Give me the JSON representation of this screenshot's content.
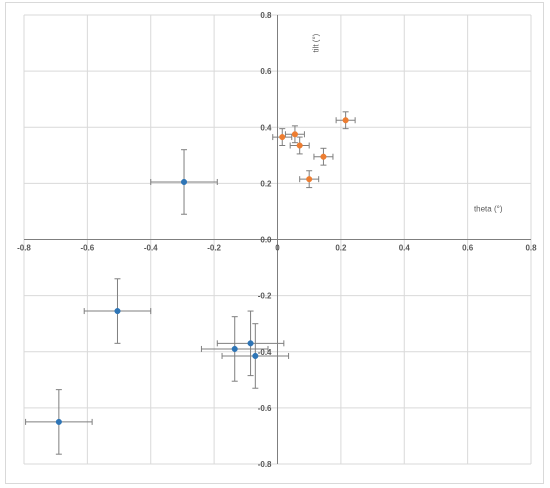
{
  "chart_data": {
    "type": "scatter",
    "xlabel": "theta (°)",
    "ylabel": "tilt (°)",
    "xlim": [
      -0.8,
      0.8
    ],
    "ylim": [
      -0.8,
      0.8
    ],
    "x_ticks": [
      "-0.8",
      "-0.6",
      "-0.4",
      "-0.2",
      "0",
      "0.2",
      "0.4",
      "0.6",
      "0.8"
    ],
    "y_ticks": [
      "0.8",
      "0.6",
      "0.4",
      "0.2",
      "0.0",
      "-0.2",
      "-0.4",
      "-0.6",
      "-0.8"
    ],
    "grid": true,
    "series": [
      {
        "color": "#2e75b6",
        "points": [
          {
            "x": -0.295,
            "y": 0.205,
            "xerr": 0.105,
            "yerr": 0.115
          },
          {
            "x": -0.505,
            "y": -0.255,
            "xerr": 0.105,
            "yerr": 0.115
          },
          {
            "x": -0.69,
            "y": -0.65,
            "xerr": 0.105,
            "yerr": 0.115
          },
          {
            "x": -0.135,
            "y": -0.39,
            "xerr": 0.105,
            "yerr": 0.115
          },
          {
            "x": -0.085,
            "y": -0.37,
            "xerr": 0.105,
            "yerr": 0.115
          },
          {
            "x": -0.07,
            "y": -0.415,
            "xerr": 0.105,
            "yerr": 0.115
          }
        ]
      },
      {
        "color": "#ed7d31",
        "points": [
          {
            "x": 0.015,
            "y": 0.365,
            "xerr": 0.03,
            "yerr": 0.03
          },
          {
            "x": 0.055,
            "y": 0.375,
            "xerr": 0.03,
            "yerr": 0.03
          },
          {
            "x": 0.07,
            "y": 0.335,
            "xerr": 0.03,
            "yerr": 0.03
          },
          {
            "x": 0.215,
            "y": 0.425,
            "xerr": 0.03,
            "yerr": 0.03
          },
          {
            "x": 0.145,
            "y": 0.295,
            "xerr": 0.03,
            "yerr": 0.03
          },
          {
            "x": 0.1,
            "y": 0.215,
            "xerr": 0.03,
            "yerr": 0.03
          }
        ]
      }
    ]
  }
}
